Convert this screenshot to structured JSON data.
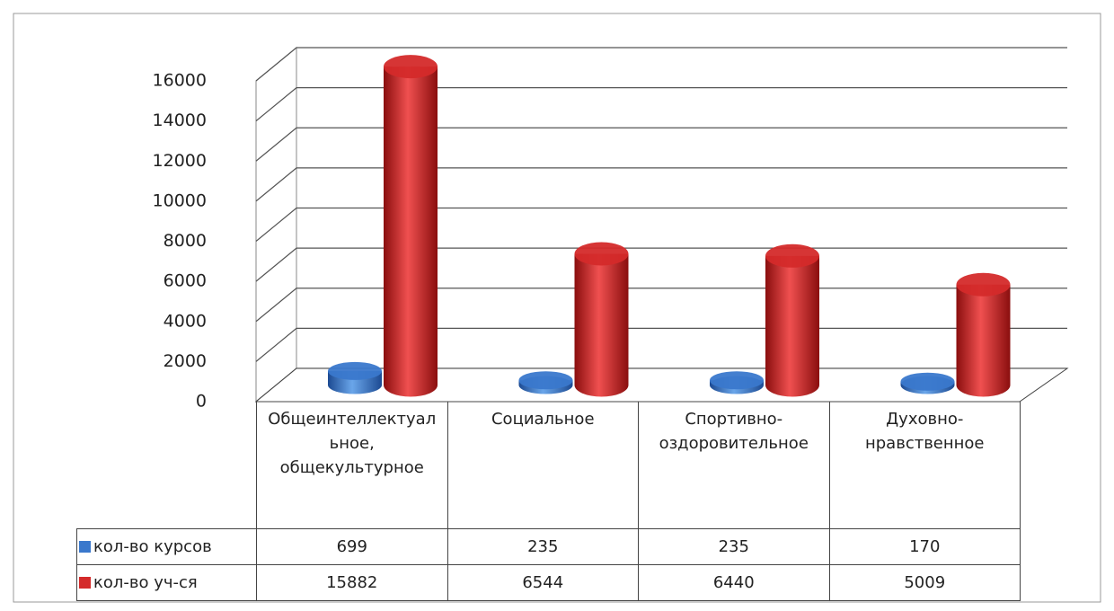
{
  "chart_data": {
    "type": "bar3d",
    "categories": [
      "Общеинтеллектуальное, общекультурное",
      "Социальное",
      "Спортивно-оздоровительное",
      "Духовно-нравственное"
    ],
    "series": [
      {
        "name": "кол-во курсов",
        "color": "#3a78cc",
        "values": [
          699,
          235,
          235,
          170
        ]
      },
      {
        "name": "кол-во уч-ся",
        "color": "#d42a2a",
        "values": [
          15882,
          6544,
          6440,
          5009
        ]
      }
    ],
    "ylim": [
      0,
      16000
    ],
    "yticks": [
      0,
      2000,
      4000,
      6000,
      8000,
      10000,
      12000,
      14000,
      16000
    ],
    "grid": true
  }
}
